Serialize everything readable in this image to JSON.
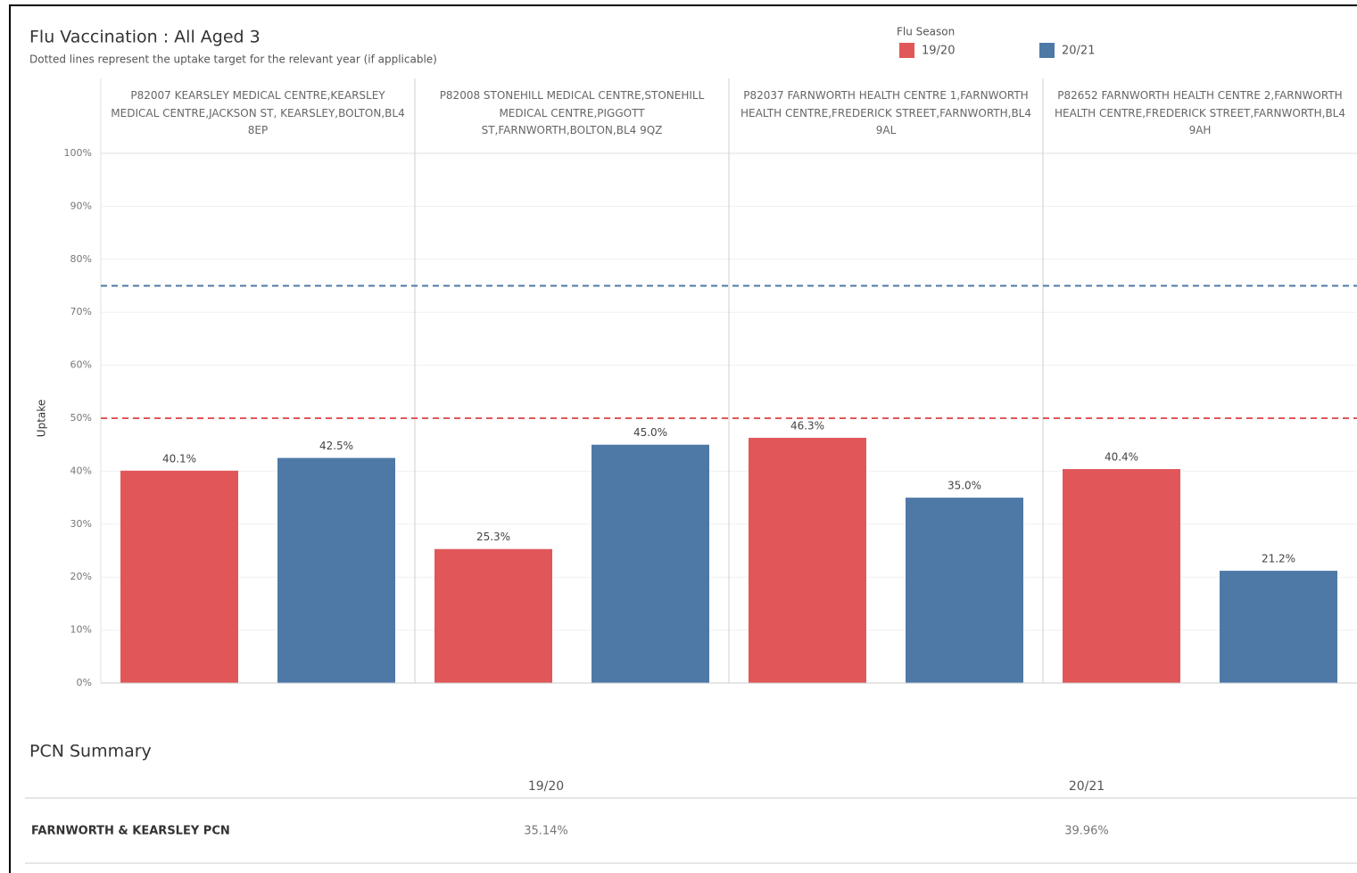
{
  "chart_data": {
    "type": "bar",
    "title": "Flu Vaccination : All Aged 3",
    "subtitle": "Dotted lines represent the uptake target for the relevant year (if applicable)",
    "legend_title": "Flu Season",
    "y_label": "Uptake",
    "categories": [
      "P82007 KEARSLEY MEDICAL CENTRE,KEARSLEY MEDICAL CENTRE,JACKSON ST, KEARSLEY,BOLTON,BL4 8EP",
      "P82008 STONEHILL MEDICAL CENTRE,STONEHILL MEDICAL CENTRE,PIGGOTT ST,FARNWORTH,BOLTON,BL4 9QZ",
      "P82037 FARNWORTH HEALTH CENTRE 1,FARNWORTH HEALTH CENTRE,FREDERICK STREET,FARNWORTH,BL4 9AL",
      "P82652 FARNWORTH HEALTH CENTRE 2,FARNWORTH HEALTH CENTRE,FREDERICK STREET,FARNWORTH,BL4 9AH"
    ],
    "series": [
      {
        "name": "19/20",
        "color": "#e15759",
        "target": 50,
        "values": [
          40.1,
          25.3,
          46.3,
          40.4
        ],
        "value_labels": [
          "40.1%",
          "25.3%",
          "46.3%",
          "40.4%"
        ]
      },
      {
        "name": "20/21",
        "color": "#4e79a7",
        "target": 75,
        "values": [
          42.5,
          45.0,
          35.0,
          21.2
        ],
        "value_labels": [
          "42.5%",
          "45.0%",
          "35.0%",
          "21.2%"
        ]
      }
    ],
    "ylim": [
      0,
      100
    ],
    "yticks": [
      {
        "value": 0,
        "label": "0%"
      },
      {
        "value": 10,
        "label": "10%"
      },
      {
        "value": 20,
        "label": "20%"
      },
      {
        "value": 30,
        "label": "30%"
      },
      {
        "value": 40,
        "label": "40%"
      },
      {
        "value": 50,
        "label": "50%"
      },
      {
        "value": 60,
        "label": "60%"
      },
      {
        "value": 70,
        "label": "70%"
      },
      {
        "value": 80,
        "label": "80%"
      },
      {
        "value": 90,
        "label": "90%"
      },
      {
        "value": 100,
        "label": "100%"
      }
    ],
    "grid": true
  },
  "table": {
    "title": "PCN Summary",
    "columns": [
      "19/20",
      "20/21"
    ],
    "rows": [
      {
        "label": "FARNWORTH & KEARSLEY PCN",
        "values": [
          "35.14%",
          "39.96%"
        ]
      }
    ]
  }
}
